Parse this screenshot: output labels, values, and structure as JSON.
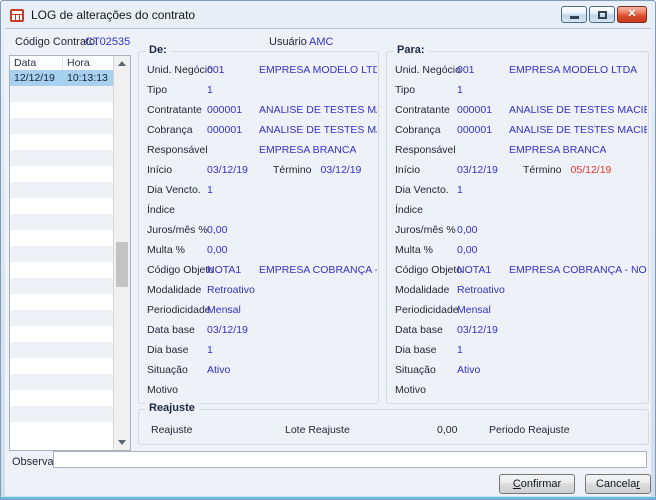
{
  "window": {
    "title": "LOG de alterações do contrato"
  },
  "header": {
    "codigo_label": "Código Contrato:",
    "codigo_value": "CT02535",
    "usuario_label": "Usuário",
    "usuario_value": "AMC"
  },
  "log_list": {
    "columns": [
      "Data",
      "Hora"
    ],
    "rows": [
      {
        "data": "12/12/19",
        "hora": "10:13:13"
      }
    ],
    "empty_row_count": 22
  },
  "panels": {
    "de": {
      "title": "De:",
      "fields": [
        {
          "label": "Unid. Negócio",
          "code": "001",
          "desc": "EMPRESA MODELO LTDA"
        },
        {
          "label": "Tipo",
          "code": "1",
          "desc": ""
        },
        {
          "label": "Contratante",
          "code": "000001",
          "desc": "ANALISE DE TESTES MACIEL FOR BUS"
        },
        {
          "label": "Cobrança",
          "code": "000001",
          "desc": "ANALISE DE TESTES MACIEL FOR BUS"
        },
        {
          "label": "Responsável",
          "code": "",
          "desc": "EMPRESA BRANCA"
        },
        {
          "label": "Início",
          "code": "03/12/19",
          "extra_label": "Término",
          "extra_value": "03/12/19",
          "extra_changed": false
        },
        {
          "label": "Dia Vencto.",
          "code": "1",
          "desc": ""
        },
        {
          "label": "Índice",
          "code": "",
          "desc": ""
        },
        {
          "label": "Juros/mês %",
          "code": "0,00",
          "desc": ""
        },
        {
          "label": "Multa %",
          "code": "0,00",
          "desc": ""
        },
        {
          "label": "Código Objeto",
          "code": "NOTA1",
          "desc": "EMPRESA COBRANÇA - NOTA DE SA"
        },
        {
          "label": "Modalidade",
          "code": "Retroativo",
          "desc": ""
        },
        {
          "label": "Periodicidade",
          "code": "Mensal",
          "desc": ""
        },
        {
          "label": "Data base",
          "code": "03/12/19",
          "desc": ""
        },
        {
          "label": "Dia base",
          "code": "1",
          "desc": ""
        },
        {
          "label": "Situação",
          "code": "Ativo",
          "desc": ""
        },
        {
          "label": "Motivo",
          "code": "",
          "desc": ""
        }
      ]
    },
    "para": {
      "title": "Para:",
      "fields": [
        {
          "label": "Unid. Negócio",
          "code": "001",
          "desc": "EMPRESA MODELO LTDA"
        },
        {
          "label": "Tipo",
          "code": "1",
          "desc": ""
        },
        {
          "label": "Contratante",
          "code": "000001",
          "desc": "ANALISE DE TESTES MACIEL FOR BUS"
        },
        {
          "label": "Cobrança",
          "code": "000001",
          "desc": "ANALISE DE TESTES MACIEL FOR BUS"
        },
        {
          "label": "Responsável",
          "code": "",
          "desc": "EMPRESA BRANCA"
        },
        {
          "label": "Início",
          "code": "03/12/19",
          "extra_label": "Término",
          "extra_value": "05/12/19",
          "extra_changed": true
        },
        {
          "label": "Dia Vencto.",
          "code": "1",
          "desc": ""
        },
        {
          "label": "Índice",
          "code": "",
          "desc": ""
        },
        {
          "label": "Juros/mês %",
          "code": "0,00",
          "desc": ""
        },
        {
          "label": "Multa %",
          "code": "0,00",
          "desc": ""
        },
        {
          "label": "Código Objeto",
          "code": "NOTA1",
          "desc": "EMPRESA COBRANÇA - NOTA DE SA"
        },
        {
          "label": "Modalidade",
          "code": "Retroativo",
          "desc": ""
        },
        {
          "label": "Periodicidade",
          "code": "Mensal",
          "desc": ""
        },
        {
          "label": "Data base",
          "code": "03/12/19",
          "desc": ""
        },
        {
          "label": "Dia base",
          "code": "1",
          "desc": ""
        },
        {
          "label": "Situação",
          "code": "Ativo",
          "desc": ""
        },
        {
          "label": "Motivo",
          "code": "",
          "desc": ""
        }
      ]
    }
  },
  "reajuste": {
    "title": "Reajuste",
    "reajuste_label": "Reajuste",
    "lote_label": "Lote Reajuste",
    "lote_value": "0,00",
    "periodo_label": "Periodo Reajuste"
  },
  "observacao": {
    "label": "Observação",
    "value": ""
  },
  "buttons": {
    "confirm": "Confirmar",
    "cancel": "Cancelar"
  },
  "colors": {
    "value_blue": "#3232cc",
    "changed_red": "#e8352c",
    "selection_blue": "#a8d1f0",
    "close_button_red": "#da4a2a"
  }
}
